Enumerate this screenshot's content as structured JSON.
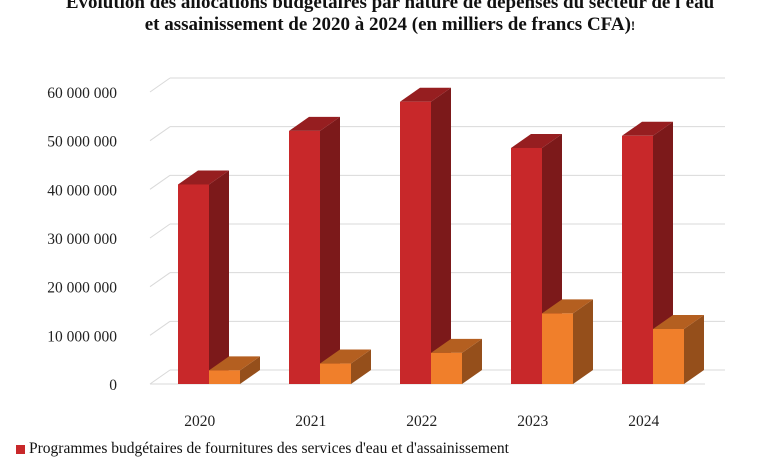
{
  "title_line1": "Évolution des allocations budgétaires par nature de dépenses du secteur de l'eau",
  "title_line2": "et assainissement de 2020 à 2024 (en milliers de francs CFA)",
  "title_suffix": "!",
  "colors": {
    "series1": "#c8282a",
    "series2": "#f07f2b",
    "grid": "#d9d9d9"
  },
  "chart_data": {
    "type": "bar",
    "categories": [
      "2020",
      "2021",
      "2022",
      "2023",
      "2024"
    ],
    "series": [
      {
        "name": "Programmes budgétaires de fournitures des services d'eau et d'assainissement",
        "values": [
          41000000,
          52000000,
          58000000,
          48500000,
          51000000
        ]
      },
      {
        "values": [
          2800000,
          4200000,
          6400000,
          14500000,
          11300000
        ]
      }
    ],
    "y_ticks": [
      "0",
      "10 000 000",
      "20 000 000",
      "30 000 000",
      "40 000 000",
      "50 000 000",
      "60 000 000"
    ],
    "ylim": [
      0,
      60000000
    ],
    "grid": true,
    "legend_position": "bottom-left"
  }
}
